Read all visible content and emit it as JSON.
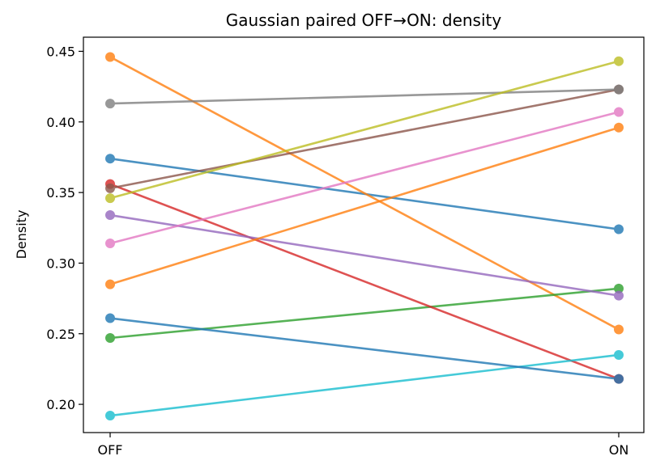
{
  "chart_data": {
    "type": "line",
    "title": "Gaussian paired OFF→ON: density",
    "xlabel": "",
    "ylabel": "Density",
    "categories": [
      "OFF",
      "ON"
    ],
    "ylim": [
      0.18,
      0.46
    ],
    "yticks": [
      "0.20",
      "0.25",
      "0.30",
      "0.35",
      "0.40",
      "0.45"
    ],
    "grid": false,
    "series": [
      {
        "color": "#1f77b4",
        "values": [
          0.374,
          0.324
        ]
      },
      {
        "color": "#ff7f0e",
        "values": [
          0.446,
          0.253
        ]
      },
      {
        "color": "#2ca02c",
        "values": [
          0.247,
          0.282
        ]
      },
      {
        "color": "#d62728",
        "values": [
          0.356,
          0.218
        ]
      },
      {
        "color": "#9467bd",
        "values": [
          0.334,
          0.277
        ]
      },
      {
        "color": "#8c564b",
        "values": [
          0.353,
          0.423
        ]
      },
      {
        "color": "#e377c2",
        "values": [
          0.314,
          0.407
        ]
      },
      {
        "color": "#7f7f7f",
        "values": [
          0.413,
          0.423
        ]
      },
      {
        "color": "#bcbd22",
        "values": [
          0.346,
          0.443
        ]
      },
      {
        "color": "#17becf",
        "values": [
          0.192,
          0.235
        ]
      },
      {
        "color": "#1f77b4",
        "values": [
          0.261,
          0.218
        ]
      },
      {
        "color": "#ff7f0e",
        "values": [
          0.285,
          0.396
        ]
      }
    ]
  }
}
